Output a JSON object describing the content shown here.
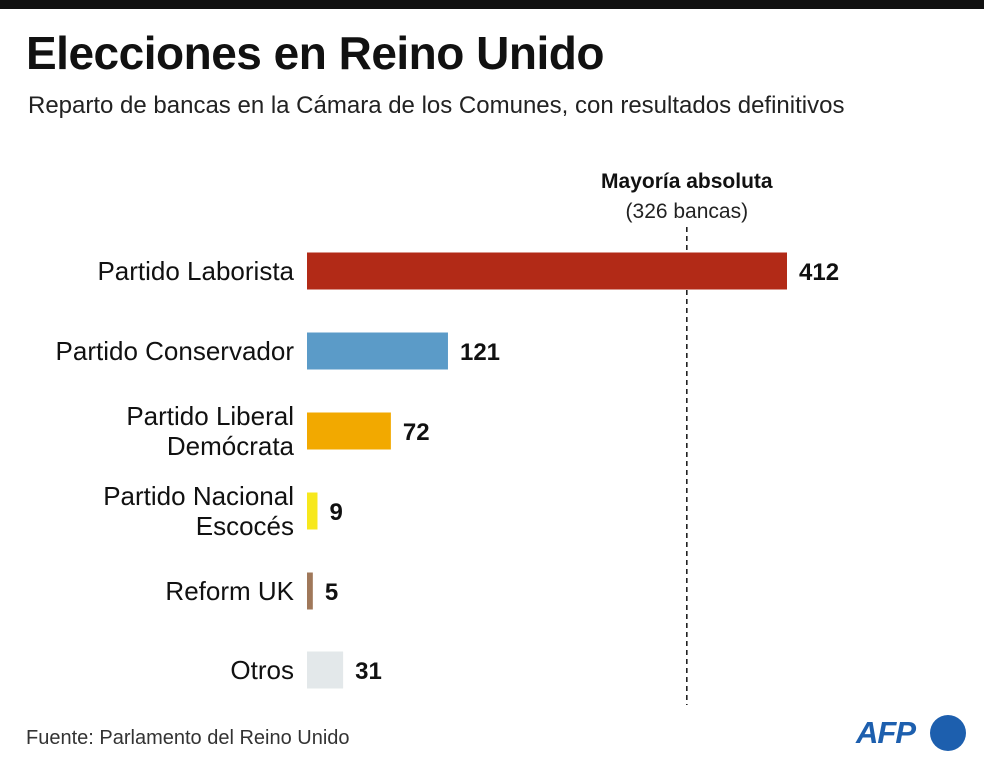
{
  "title": "Elecciones en Reino Unido",
  "subtitle": "Reparto de bancas en la Cámara de los Comunes, con resultados definitivos",
  "source": "Fuente: Parlamento del Reino Unido",
  "logo_text": "AFP",
  "colors": {
    "bar_colors": [
      "#b22a17",
      "#5b9bc8",
      "#f2a900",
      "#f7e81d",
      "#a0785a",
      "#e3e8ea"
    ],
    "majority_line": "#222222",
    "logo": "#1d5fae"
  },
  "chart_data": {
    "type": "bar",
    "orientation": "horizontal",
    "categories": [
      [
        "Partido Laborista"
      ],
      [
        "Partido Conservador"
      ],
      [
        "Partido Liberal",
        "Demócrata"
      ],
      [
        "Partido Nacional",
        "Escocés"
      ],
      [
        "Reform UK"
      ],
      [
        "Otros"
      ]
    ],
    "values": [
      412,
      121,
      72,
      9,
      5,
      31
    ],
    "data_labels": [
      "412",
      "121",
      "72",
      "9",
      "5",
      "31"
    ],
    "reference_line": {
      "value": 326,
      "label": "Mayoría absoluta",
      "sublabel": "(326 bancas)",
      "style": "dashed"
    },
    "grid": false,
    "legend": "none",
    "xaxis_visible": false,
    "xlim": [
      0,
      412
    ]
  }
}
